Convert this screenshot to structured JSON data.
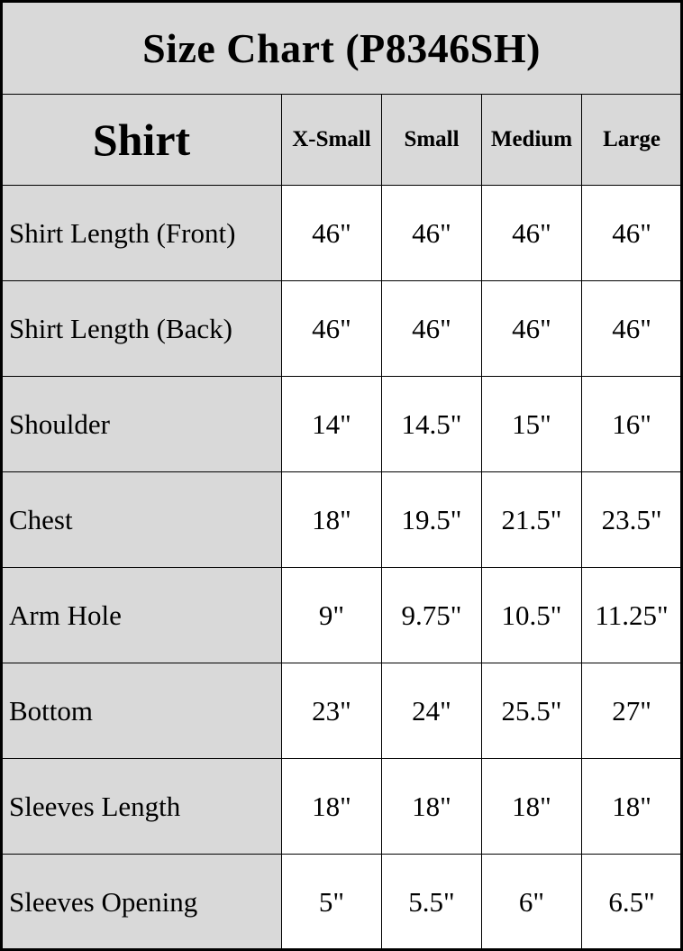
{
  "title": "Size Chart (P8346SH)",
  "header": {
    "category": "Shirt",
    "sizes": [
      "X-Small",
      "Small",
      "Medium",
      "Large"
    ]
  },
  "rows": [
    {
      "label": "Shirt Length (Front)",
      "values": [
        "46\"",
        "46\"",
        "46\"",
        "46\""
      ]
    },
    {
      "label": "Shirt Length (Back)",
      "values": [
        "46\"",
        "46\"",
        "46\"",
        "46\""
      ]
    },
    {
      "label": "Shoulder",
      "values": [
        "14\"",
        "14.5\"",
        "15\"",
        "16\""
      ]
    },
    {
      "label": "Chest",
      "values": [
        "18\"",
        "19.5\"",
        "21.5\"",
        "23.5\""
      ]
    },
    {
      "label": "Arm Hole",
      "values": [
        "9\"",
        "9.75\"",
        "10.5\"",
        "11.25\""
      ]
    },
    {
      "label": "Bottom",
      "values": [
        "23\"",
        "24\"",
        "25.5\"",
        "27\""
      ]
    },
    {
      "label": "Sleeves Length",
      "values": [
        "18\"",
        "18\"",
        "18\"",
        "18\""
      ]
    },
    {
      "label": "Sleeves Opening",
      "values": [
        "5\"",
        "5.5\"",
        "6\"",
        "6.5\""
      ]
    }
  ],
  "colors": {
    "header_bg": "#d9d9d9",
    "cell_bg": "#ffffff",
    "border": "#000000"
  }
}
